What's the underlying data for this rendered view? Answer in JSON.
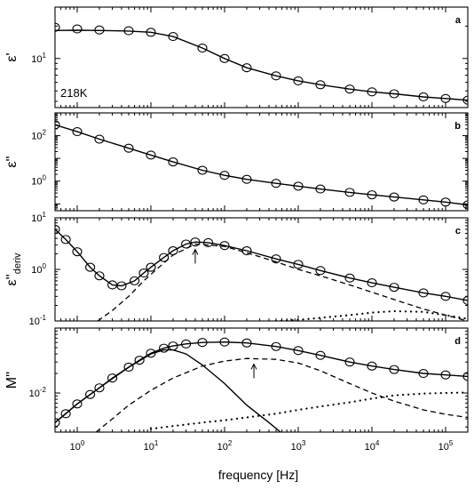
{
  "chart_data": [
    {
      "panel_letter": "a",
      "type": "scatter",
      "ylabel": "ε'",
      "yscale": "log",
      "ylim": [
        3.5,
        30
      ],
      "yticks": [
        {
          "value": 10,
          "label": "10",
          "exp": "1"
        }
      ],
      "annotation": "218K",
      "series": [
        {
          "role": "data",
          "marker": "circle",
          "x": [
            0.5,
            1,
            2,
            5,
            10,
            20,
            50,
            100,
            200,
            500,
            1000,
            2000,
            5000,
            10000,
            20000,
            50000,
            100000,
            200000
          ],
          "y": [
            19.5,
            18.8,
            18.4,
            18.1,
            17.5,
            16,
            12.5,
            10,
            8.2,
            6.9,
            6.2,
            5.7,
            5.2,
            4.9,
            4.7,
            4.4,
            4.25,
            4.1
          ]
        },
        {
          "role": "fit",
          "style": "solid",
          "x": [
            0.5,
            1,
            2,
            5,
            10,
            20,
            50,
            100,
            200,
            500,
            1000,
            2000,
            5000,
            10000,
            20000,
            50000,
            100000,
            200000
          ],
          "y": [
            18.2,
            18.3,
            18.2,
            18,
            17.5,
            16,
            12.5,
            10,
            8.2,
            6.9,
            6.2,
            5.7,
            5.2,
            4.9,
            4.7,
            4.4,
            4.25,
            4.1
          ]
        }
      ]
    },
    {
      "panel_letter": "b",
      "type": "scatter",
      "ylabel": "ε''",
      "yscale": "log",
      "ylim": [
        0.05,
        1000
      ],
      "yticks": [
        {
          "value": 1,
          "label": "10",
          "exp": "0"
        },
        {
          "value": 100,
          "label": "10",
          "exp": "2"
        }
      ],
      "series": [
        {
          "role": "data",
          "marker": "circle",
          "x": [
            0.5,
            1,
            2,
            5,
            10,
            20,
            50,
            100,
            200,
            500,
            1000,
            2000,
            5000,
            10000,
            20000,
            50000,
            100000,
            200000
          ],
          "y": [
            300,
            150,
            70,
            28,
            14,
            7,
            3,
            1.8,
            1.2,
            0.8,
            0.6,
            0.45,
            0.32,
            0.25,
            0.2,
            0.15,
            0.12,
            0.09
          ]
        },
        {
          "role": "fit",
          "style": "solid",
          "x": [
            0.5,
            1,
            2,
            5,
            10,
            20,
            50,
            100,
            200,
            500,
            1000,
            2000,
            5000,
            10000,
            20000,
            50000,
            100000,
            200000
          ],
          "y": [
            300,
            150,
            70,
            28,
            14,
            7,
            3,
            1.8,
            1.2,
            0.8,
            0.6,
            0.45,
            0.32,
            0.25,
            0.2,
            0.15,
            0.12,
            0.09
          ]
        }
      ]
    },
    {
      "panel_letter": "c",
      "type": "scatter",
      "ylabel": "ε''",
      "ylabel_sub": "deriv",
      "yscale": "log",
      "ylim": [
        0.1,
        10
      ],
      "yticks": [
        {
          "value": 0.1,
          "label": "10",
          "exp": "-1"
        },
        {
          "value": 1,
          "label": "10",
          "exp": "0"
        },
        {
          "value": 10,
          "label": "10",
          "exp": "1"
        }
      ],
      "arrow_x": 40,
      "series": [
        {
          "role": "data",
          "marker": "circle",
          "x": [
            0.5,
            0.7,
            1,
            1.5,
            2,
            3,
            4,
            6,
            8,
            10,
            15,
            20,
            30,
            40,
            60,
            100,
            200,
            500,
            1000,
            2000,
            5000,
            10000,
            20000,
            50000,
            100000,
            200000
          ],
          "y": [
            6,
            3.8,
            2.2,
            1.1,
            0.75,
            0.5,
            0.48,
            0.6,
            0.85,
            1.1,
            1.7,
            2.3,
            3.1,
            3.4,
            3.3,
            2.9,
            2.3,
            1.6,
            1.25,
            0.95,
            0.68,
            0.55,
            0.45,
            0.35,
            0.3,
            0.25
          ]
        },
        {
          "role": "fit",
          "style": "solid",
          "x": [
            0.5,
            0.7,
            1,
            1.5,
            2,
            3,
            4,
            6,
            8,
            10,
            15,
            20,
            30,
            40,
            60,
            100,
            200,
            500,
            1000,
            2000,
            5000,
            10000,
            20000,
            50000,
            100000,
            200000
          ],
          "y": [
            6,
            3.8,
            2.2,
            1.1,
            0.75,
            0.5,
            0.48,
            0.6,
            0.85,
            1.1,
            1.7,
            2.3,
            3.1,
            3.4,
            3.3,
            2.9,
            2.3,
            1.6,
            1.25,
            0.95,
            0.68,
            0.55,
            0.45,
            0.35,
            0.3,
            0.25
          ]
        },
        {
          "role": "component",
          "style": "dashed",
          "x": [
            1.9,
            3,
            5,
            8,
            10,
            20,
            40,
            100,
            200,
            500,
            1000,
            2000,
            5000,
            10000,
            20000,
            50000,
            100000,
            200000
          ],
          "y": [
            0.1,
            0.16,
            0.3,
            0.6,
            0.8,
            1.9,
            3.1,
            2.8,
            2.1,
            1.4,
            1,
            0.75,
            0.5,
            0.36,
            0.26,
            0.17,
            0.13,
            0.1
          ]
        },
        {
          "role": "component",
          "style": "dotted",
          "x": [
            500,
            1000,
            2000,
            5000,
            10000,
            20000,
            50000,
            100000,
            200000
          ],
          "y": [
            0.1,
            0.105,
            0.115,
            0.13,
            0.145,
            0.155,
            0.15,
            0.13,
            0.11
          ]
        }
      ]
    },
    {
      "panel_letter": "d",
      "type": "scatter",
      "ylabel": "M''",
      "yscale": "log",
      "ylim": [
        0.0025,
        0.1
      ],
      "yticks": [
        {
          "value": 0.01,
          "label": "10",
          "exp": "-2"
        }
      ],
      "arrow_x": 250,
      "series": [
        {
          "role": "data",
          "marker": "circle",
          "x": [
            0.5,
            0.7,
            1,
            1.5,
            2,
            3,
            5,
            7,
            10,
            15,
            20,
            30,
            50,
            100,
            200,
            500,
            1000,
            2000,
            5000,
            10000,
            20000,
            50000,
            100000,
            200000
          ],
          "y": [
            0.0035,
            0.0048,
            0.0068,
            0.0095,
            0.012,
            0.017,
            0.025,
            0.032,
            0.041,
            0.049,
            0.053,
            0.057,
            0.06,
            0.061,
            0.059,
            0.052,
            0.045,
            0.038,
            0.03,
            0.026,
            0.023,
            0.02,
            0.019,
            0.018
          ]
        },
        {
          "role": "fit",
          "style": "solid",
          "x": [
            0.5,
            0.7,
            1,
            1.5,
            2,
            3,
            5,
            7,
            10,
            15,
            20,
            30,
            50,
            100,
            200,
            500,
            1000,
            2000,
            5000,
            10000,
            20000,
            50000,
            100000,
            200000
          ],
          "y": [
            0.0035,
            0.0048,
            0.0068,
            0.0095,
            0.012,
            0.017,
            0.025,
            0.032,
            0.041,
            0.049,
            0.053,
            0.057,
            0.06,
            0.061,
            0.059,
            0.052,
            0.045,
            0.038,
            0.03,
            0.026,
            0.023,
            0.02,
            0.019,
            0.018
          ]
        },
        {
          "role": "component",
          "style": "solid",
          "x": [
            0.5,
            1,
            2,
            5,
            10,
            15,
            20,
            30,
            50,
            100,
            200,
            400,
            600
          ],
          "y": [
            0.0035,
            0.0068,
            0.012,
            0.025,
            0.04,
            0.046,
            0.046,
            0.04,
            0.027,
            0.014,
            0.0065,
            0.0035,
            0.0024
          ]
        },
        {
          "role": "component",
          "style": "dashed",
          "x": [
            1.8,
            3,
            5,
            10,
            20,
            50,
            100,
            200,
            500,
            1000,
            2000,
            5000,
            10000,
            20000,
            50000,
            100000,
            200000
          ],
          "y": [
            0.0025,
            0.004,
            0.0065,
            0.011,
            0.017,
            0.026,
            0.031,
            0.034,
            0.033,
            0.029,
            0.022,
            0.014,
            0.01,
            0.0075,
            0.0055,
            0.0047,
            0.0042
          ]
        },
        {
          "role": "component",
          "style": "dotted",
          "x": [
            10,
            20,
            50,
            100,
            200,
            500,
            1000,
            2000,
            5000,
            10000,
            20000,
            50000,
            100000,
            200000
          ],
          "y": [
            0.0028,
            0.0031,
            0.0035,
            0.0038,
            0.0042,
            0.0048,
            0.0055,
            0.0062,
            0.0072,
            0.0082,
            0.0092,
            0.0098,
            0.01,
            0.0102
          ]
        }
      ]
    }
  ],
  "x_axis": {
    "label": "frequency [Hz]",
    "scale": "log",
    "xlim": [
      0.5,
      200000
    ],
    "ticks": [
      {
        "value": 1,
        "label": "10",
        "exp": "0"
      },
      {
        "value": 10,
        "label": "10",
        "exp": "1"
      },
      {
        "value": 100,
        "label": "10",
        "exp": "2"
      },
      {
        "value": 1000,
        "label": "10",
        "exp": "3"
      },
      {
        "value": 10000,
        "label": "10",
        "exp": "4"
      },
      {
        "value": 100000,
        "label": "10",
        "exp": "5"
      }
    ]
  }
}
